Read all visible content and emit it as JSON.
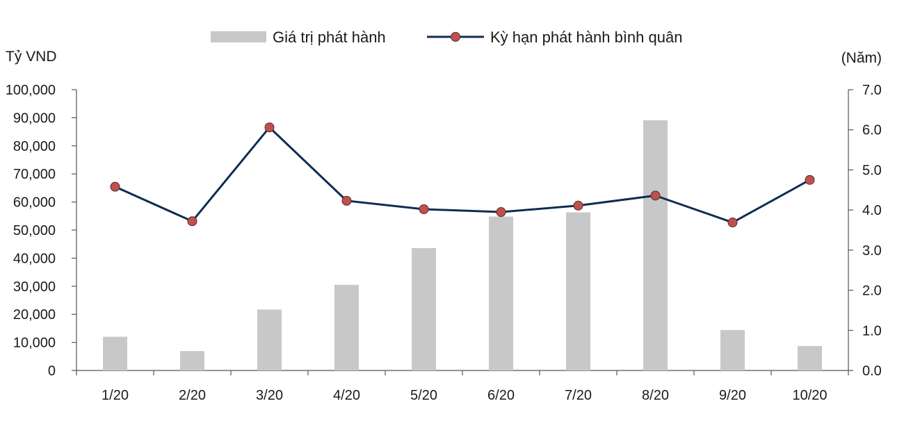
{
  "chart_data": {
    "type": "bar+line",
    "categories": [
      "1/20",
      "2/20",
      "3/20",
      "4/20",
      "5/20",
      "6/20",
      "7/20",
      "8/20",
      "9/20",
      "10/20"
    ],
    "series": [
      {
        "name": "Giá trị phát hành",
        "type": "bar",
        "axis": "left",
        "color": "#c8c8c8",
        "values": [
          12000,
          6900,
          21700,
          30500,
          43600,
          54800,
          56300,
          89100,
          14400,
          8700
        ]
      },
      {
        "name": "Kỳ hạn phát hành bình quân",
        "type": "line",
        "axis": "right",
        "color": "#0d2d52",
        "marker_color": "#c0504d",
        "values": [
          4.58,
          3.72,
          6.06,
          4.23,
          4.02,
          3.95,
          4.11,
          4.36,
          3.69,
          4.75
        ]
      }
    ],
    "y_left": {
      "label": "Tỷ VND",
      "ylim": [
        0,
        100000
      ],
      "ticks": [
        "0",
        "10,000",
        "20,000",
        "30,000",
        "40,000",
        "50,000",
        "60,000",
        "70,000",
        "80,000",
        "90,000",
        "100,000"
      ]
    },
    "y_right": {
      "label": "(Năm)",
      "ylim": [
        0,
        7
      ],
      "ticks": [
        "0.0",
        "1.0",
        "2.0",
        "3.0",
        "4.0",
        "5.0",
        "6.0",
        "7.0"
      ]
    },
    "grid": false,
    "legend": "top-center"
  }
}
